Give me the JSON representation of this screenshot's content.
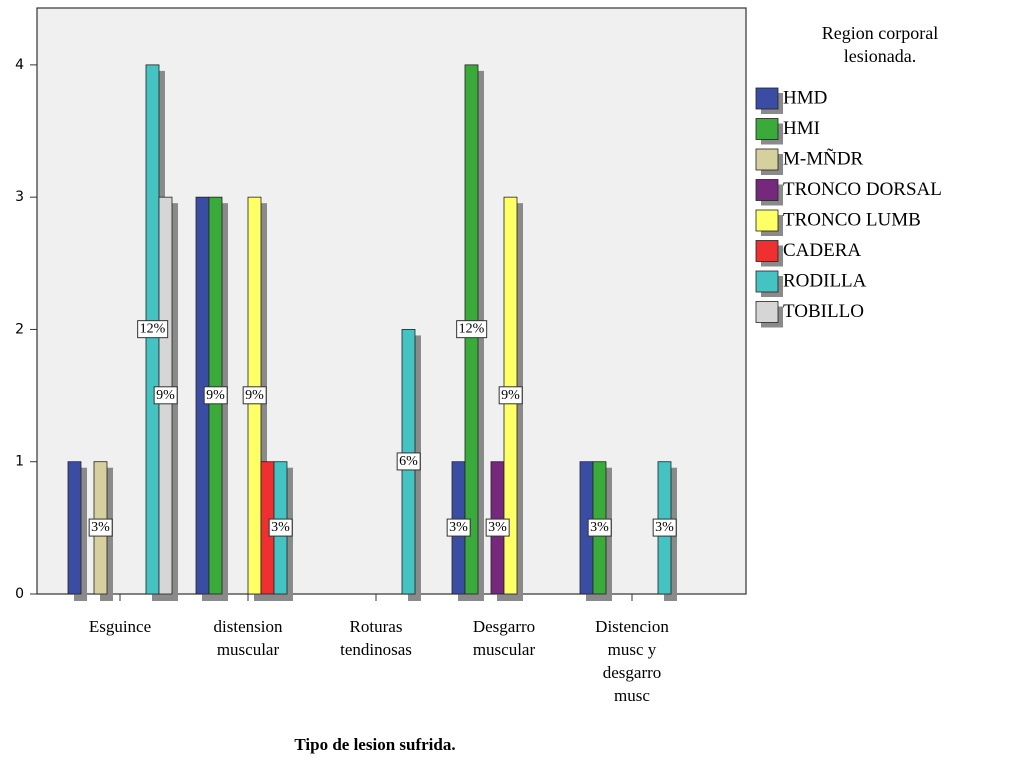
{
  "chart_data": {
    "type": "bar",
    "x_label": "Tipo de lesion sufrida.",
    "categories": [
      "Esguince",
      "distension\nmuscular",
      "Roturas\ntendinosas",
      "Desgarro\nmuscular",
      "Distencion\nmusc y\ndesgarro\nmusc"
    ],
    "legend_title": [
      "Region corporal",
      "lesionada."
    ],
    "series": [
      {
        "name": "HMD",
        "color": "#3a4da3",
        "values": [
          1,
          3,
          null,
          1,
          1
        ],
        "percent_labels": [
          null,
          null,
          null,
          "3%",
          null
        ]
      },
      {
        "name": "HMI",
        "color": "#3aaa3a",
        "values": [
          null,
          3,
          null,
          4,
          1
        ],
        "percent_labels": [
          null,
          "9%",
          null,
          "12%",
          "3%"
        ]
      },
      {
        "name": "M-MÑDR",
        "color": "#d6cf9e",
        "values": [
          1,
          null,
          null,
          null,
          null
        ],
        "percent_labels": [
          "3%",
          null,
          null,
          null,
          null
        ]
      },
      {
        "name": "TRONCO DORSAL",
        "color": "#76287c",
        "values": [
          null,
          null,
          null,
          1,
          null
        ],
        "percent_labels": [
          null,
          null,
          null,
          "3%",
          null
        ]
      },
      {
        "name": "TRONCO LUMB",
        "color": "#ffff66",
        "values": [
          null,
          3,
          null,
          3,
          null
        ],
        "percent_labels": [
          null,
          "9%",
          null,
          "9%",
          null
        ]
      },
      {
        "name": "CADERA",
        "color": "#ee3030",
        "values": [
          null,
          1,
          null,
          null,
          null
        ],
        "percent_labels": [
          null,
          null,
          null,
          null,
          null
        ]
      },
      {
        "name": "RODILLA",
        "color": "#45c2c2",
        "values": [
          4,
          1,
          2,
          null,
          1
        ],
        "percent_labels": [
          "12%",
          "3%",
          "6%",
          null,
          "3%"
        ]
      },
      {
        "name": "TOBILLO",
        "color": "#d6d6d6",
        "values": [
          3,
          null,
          null,
          null,
          null
        ],
        "percent_labels": [
          "9%",
          null,
          null,
          null,
          null
        ]
      }
    ],
    "ylim": [
      0,
      4.43
    ],
    "yticks": [
      0,
      1,
      2,
      3,
      4
    ]
  }
}
